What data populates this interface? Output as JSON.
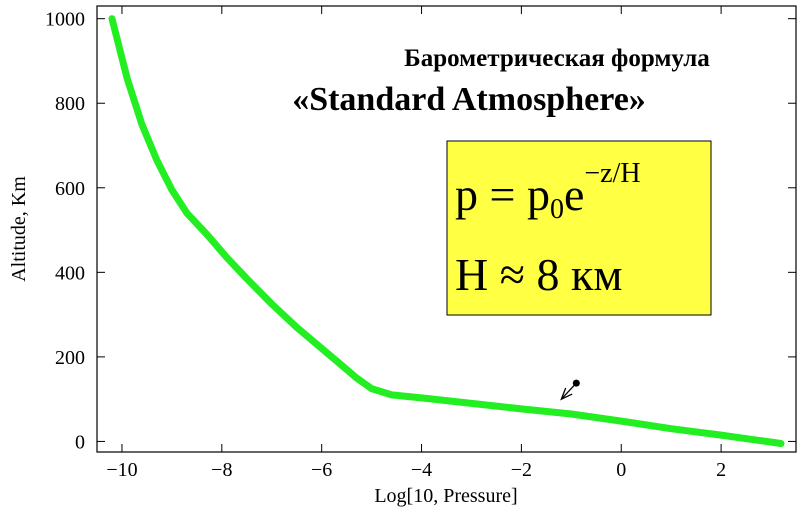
{
  "chart_data": {
    "type": "line",
    "title": "Барометрическая формула",
    "subtitle": "«Standard Atmosphere»",
    "xlabel": "Log[10, Pressure]",
    "ylabel": "Altitude, Km",
    "xlim": [
      -10.5,
      3.5
    ],
    "ylim": [
      -25,
      1030
    ],
    "xticks": [
      -10,
      -8,
      -6,
      -4,
      -2,
      0,
      2
    ],
    "xtick_labels": [
      "−10",
      "−8",
      "−6",
      "−4",
      "−2",
      "0",
      "2"
    ],
    "yticks": [
      0,
      200,
      400,
      600,
      800,
      1000
    ],
    "ytick_labels": [
      "0",
      "200",
      "400",
      "600",
      "800",
      "1000"
    ],
    "grid": false,
    "legend": "none",
    "series": [
      {
        "color": "#22ee22",
        "x": [
          -10.2,
          -9.9,
          -9.6,
          -9.3,
          -9.0,
          -8.7,
          -8.3,
          -7.9,
          -7.5,
          -7.0,
          -6.5,
          -6.0,
          -5.6,
          -5.3,
          -5.0,
          -4.6,
          -4.0,
          -3.0,
          -2.0,
          -1.0,
          0.0,
          1.0,
          2.0,
          3.2
        ],
        "y": [
          1000,
          860,
          750,
          665,
          595,
          540,
          490,
          435,
          385,
          325,
          270,
          220,
          180,
          150,
          125,
          110,
          103,
          90,
          77,
          65,
          48,
          30,
          15,
          -5
        ]
      }
    ],
    "annotation": {
      "box_color": "#ffff44",
      "line1": {
        "lhs": "p = p",
        "sub": "0",
        "base": "e",
        "exp": "−z/H"
      },
      "line2": "H ≈ 8 км",
      "arrow_from": [
        -0.9,
        138
      ],
      "arrow_to": [
        -1.2,
        100
      ]
    }
  }
}
